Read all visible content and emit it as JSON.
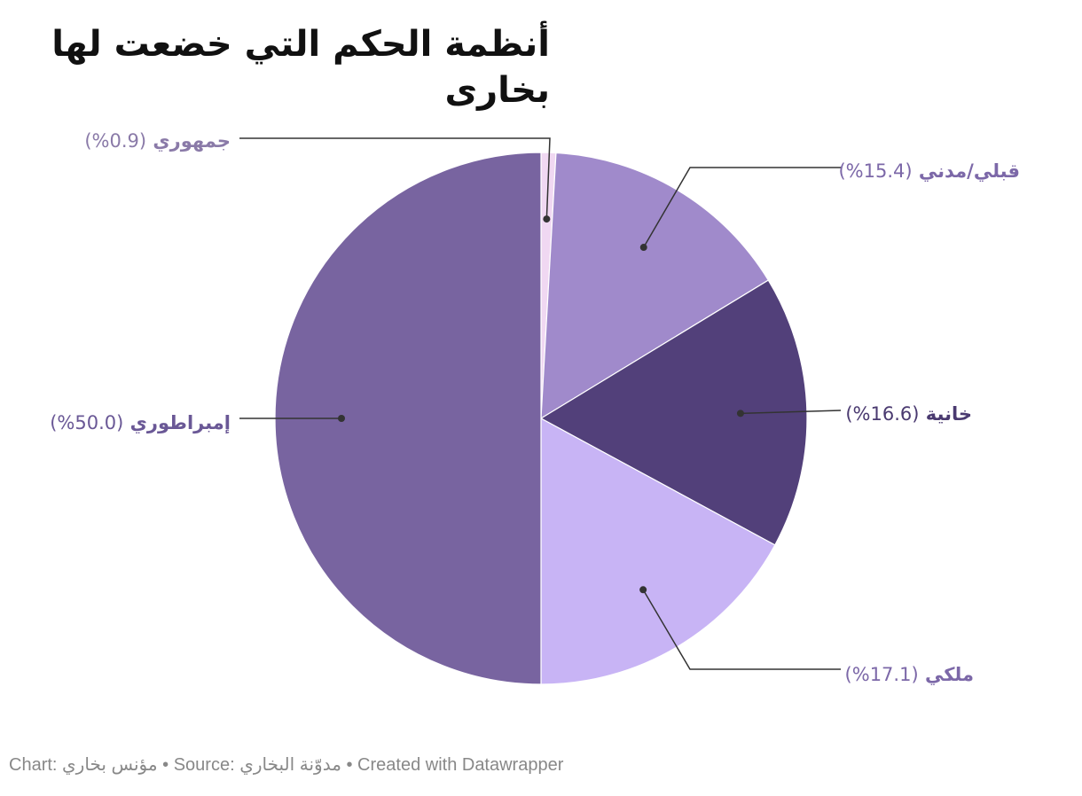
{
  "chart_data": {
    "type": "pie",
    "title": "أنظمة الحكم التي خضعت لها بخارى",
    "slices": [
      {
        "name": "جمهوري",
        "value": 0.9,
        "value_label": "(0.9%)",
        "color": "#f0d8f2",
        "label_color": "#8a7aa8"
      },
      {
        "name": "قبلي/مدني",
        "value": 15.4,
        "value_label": "(15.4%)",
        "color": "#a08acb",
        "label_color": "#7c68a8"
      },
      {
        "name": "خانية",
        "value": 16.6,
        "value_label": "(16.6%)",
        "color": "#52407a",
        "label_color": "#4a3a70"
      },
      {
        "name": "ملكي",
        "value": 17.1,
        "value_label": "(17.1%)",
        "color": "#c8b4f5",
        "label_color": "#7c68a8"
      },
      {
        "name": "إمبراطوري",
        "value": 50.0,
        "value_label": "(50.0%)",
        "color": "#7864a0",
        "label_color": "#6a5896"
      }
    ],
    "start_angle": "top",
    "direction": "clockwise",
    "legend": "none"
  },
  "footer": {
    "text": "Chart: مؤنس بخاري • Source: مدوّنة البخاري • Created with Datawrapper"
  }
}
